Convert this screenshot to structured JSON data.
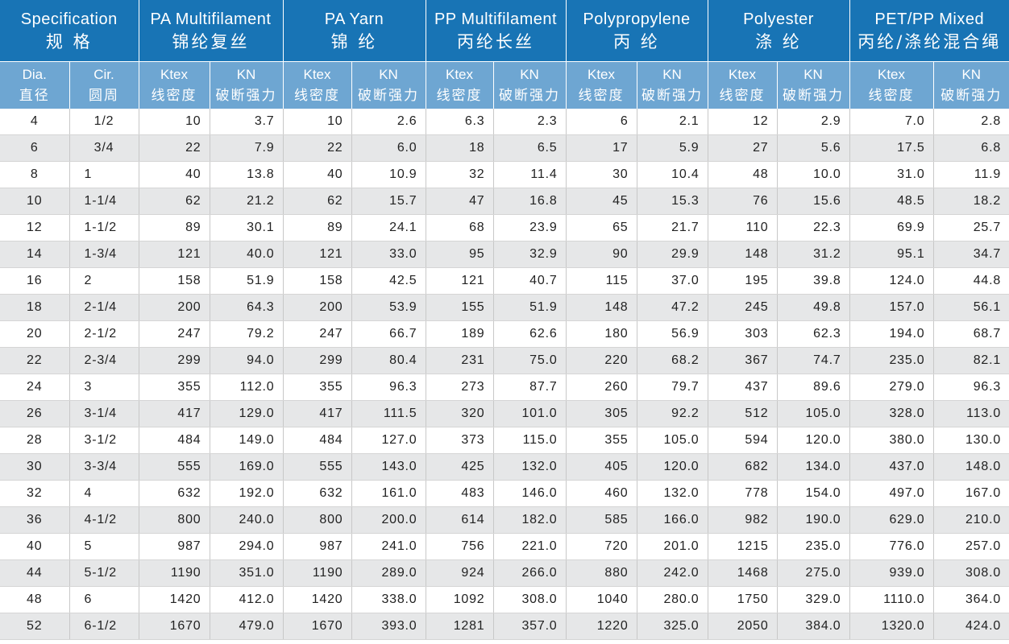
{
  "groups": [
    {
      "en": "Specification",
      "cn": "规 格"
    },
    {
      "en": "PA Multifilament",
      "cn": "锦纶复丝"
    },
    {
      "en": "PA Yarn",
      "cn": "锦 纶"
    },
    {
      "en": "PP Multifilament",
      "cn": "丙纶长丝"
    },
    {
      "en": "Polypropylene",
      "cn": "丙 纶"
    },
    {
      "en": "Polyester",
      "cn": "涤 纶"
    },
    {
      "en": "PET/PP Mixed",
      "cn": "丙纶/涤纶混合绳"
    }
  ],
  "subheaders": [
    {
      "en": "Dia.",
      "cn": "直径"
    },
    {
      "en": "Cir.",
      "cn": "圆周"
    },
    {
      "en": "Ktex",
      "cn": "线密度"
    },
    {
      "en": "KN",
      "cn": "破断强力"
    },
    {
      "en": "Ktex",
      "cn": "线密度"
    },
    {
      "en": "KN",
      "cn": "破断强力"
    },
    {
      "en": "Ktex",
      "cn": "线密度"
    },
    {
      "en": "KN",
      "cn": "破断强力"
    },
    {
      "en": "Ktex",
      "cn": "线密度"
    },
    {
      "en": "KN",
      "cn": "破断强力"
    },
    {
      "en": "Ktex",
      "cn": "线密度"
    },
    {
      "en": "KN",
      "cn": "破断强力"
    },
    {
      "en": "Ktex",
      "cn": "线密度"
    },
    {
      "en": "KN",
      "cn": "破断强力"
    }
  ],
  "rows": [
    [
      "4",
      "1/2",
      "10",
      "3.7",
      "10",
      "2.6",
      "6.3",
      "2.3",
      "6",
      "2.1",
      "12",
      "2.9",
      "7.0",
      "2.8"
    ],
    [
      "6",
      "3/4",
      "22",
      "7.9",
      "22",
      "6.0",
      "18",
      "6.5",
      "17",
      "5.9",
      "27",
      "5.6",
      "17.5",
      "6.8"
    ],
    [
      "8",
      "1",
      "40",
      "13.8",
      "40",
      "10.9",
      "32",
      "11.4",
      "30",
      "10.4",
      "48",
      "10.0",
      "31.0",
      "11.9"
    ],
    [
      "10",
      "1-1/4",
      "62",
      "21.2",
      "62",
      "15.7",
      "47",
      "16.8",
      "45",
      "15.3",
      "76",
      "15.6",
      "48.5",
      "18.2"
    ],
    [
      "12",
      "1-1/2",
      "89",
      "30.1",
      "89",
      "24.1",
      "68",
      "23.9",
      "65",
      "21.7",
      "110",
      "22.3",
      "69.9",
      "25.7"
    ],
    [
      "14",
      "1-3/4",
      "121",
      "40.0",
      "121",
      "33.0",
      "95",
      "32.9",
      "90",
      "29.9",
      "148",
      "31.2",
      "95.1",
      "34.7"
    ],
    [
      "16",
      "2",
      "158",
      "51.9",
      "158",
      "42.5",
      "121",
      "40.7",
      "115",
      "37.0",
      "195",
      "39.8",
      "124.0",
      "44.8"
    ],
    [
      "18",
      "2-1/4",
      "200",
      "64.3",
      "200",
      "53.9",
      "155",
      "51.9",
      "148",
      "47.2",
      "245",
      "49.8",
      "157.0",
      "56.1"
    ],
    [
      "20",
      "2-1/2",
      "247",
      "79.2",
      "247",
      "66.7",
      "189",
      "62.6",
      "180",
      "56.9",
      "303",
      "62.3",
      "194.0",
      "68.7"
    ],
    [
      "22",
      "2-3/4",
      "299",
      "94.0",
      "299",
      "80.4",
      "231",
      "75.0",
      "220",
      "68.2",
      "367",
      "74.7",
      "235.0",
      "82.1"
    ],
    [
      "24",
      "3",
      "355",
      "112.0",
      "355",
      "96.3",
      "273",
      "87.7",
      "260",
      "79.7",
      "437",
      "89.6",
      "279.0",
      "96.3"
    ],
    [
      "26",
      "3-1/4",
      "417",
      "129.0",
      "417",
      "111.5",
      "320",
      "101.0",
      "305",
      "92.2",
      "512",
      "105.0",
      "328.0",
      "113.0"
    ],
    [
      "28",
      "3-1/2",
      "484",
      "149.0",
      "484",
      "127.0",
      "373",
      "115.0",
      "355",
      "105.0",
      "594",
      "120.0",
      "380.0",
      "130.0"
    ],
    [
      "30",
      "3-3/4",
      "555",
      "169.0",
      "555",
      "143.0",
      "425",
      "132.0",
      "405",
      "120.0",
      "682",
      "134.0",
      "437.0",
      "148.0"
    ],
    [
      "32",
      "4",
      "632",
      "192.0",
      "632",
      "161.0",
      "483",
      "146.0",
      "460",
      "132.0",
      "778",
      "154.0",
      "497.0",
      "167.0"
    ],
    [
      "36",
      "4-1/2",
      "800",
      "240.0",
      "800",
      "200.0",
      "614",
      "182.0",
      "585",
      "166.0",
      "982",
      "190.0",
      "629.0",
      "210.0"
    ],
    [
      "40",
      "5",
      "987",
      "294.0",
      "987",
      "241.0",
      "756",
      "221.0",
      "720",
      "201.0",
      "1215",
      "235.0",
      "776.0",
      "257.0"
    ],
    [
      "44",
      "5-1/2",
      "1190",
      "351.0",
      "1190",
      "289.0",
      "924",
      "266.0",
      "880",
      "242.0",
      "1468",
      "275.0",
      "939.0",
      "308.0"
    ],
    [
      "48",
      "6",
      "1420",
      "412.0",
      "1420",
      "338.0",
      "1092",
      "308.0",
      "1040",
      "280.0",
      "1750",
      "329.0",
      "1110.0",
      "364.0"
    ],
    [
      "52",
      "6-1/2",
      "1670",
      "479.0",
      "1670",
      "393.0",
      "1281",
      "357.0",
      "1220",
      "325.0",
      "2050",
      "384.0",
      "1320.0",
      "424.0"
    ]
  ]
}
